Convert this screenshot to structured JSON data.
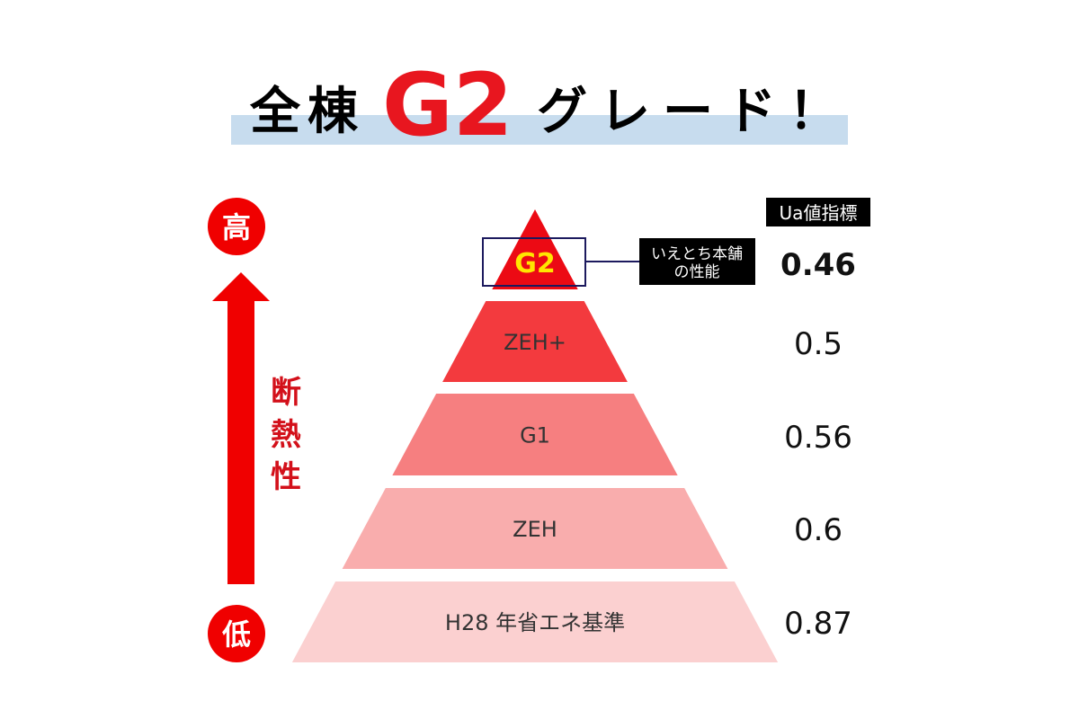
{
  "title": {
    "prefix": "全棟",
    "highlight": "G2",
    "suffix": "グレード！",
    "highlight_color": "#e8161f",
    "band_color": "#c7dcee"
  },
  "axis": {
    "high_label": "高",
    "low_label": "低",
    "caption_chars": [
      "断",
      "熱",
      "性"
    ],
    "color": "#f00000"
  },
  "ua_header": "Ua値指標",
  "callout": {
    "line1": "いえとち本舗",
    "line2": "の性能"
  },
  "levels": [
    {
      "label": "G2",
      "ua": "0.46",
      "color": "#ec0a14",
      "label_color": "#ffe600"
    },
    {
      "label": "ZEH+",
      "ua": "0.5",
      "color": "#f33a3e",
      "label_color": "#333333"
    },
    {
      "label": "G1",
      "ua": "0.56",
      "color": "#f67f80",
      "label_color": "#333333"
    },
    {
      "label": "ZEH",
      "ua": "0.6",
      "color": "#f9adad",
      "label_color": "#333333"
    },
    {
      "label": "H28 年省エネ基準",
      "ua": "0.87",
      "color": "#fbd0d0",
      "label_color": "#333333"
    }
  ]
}
